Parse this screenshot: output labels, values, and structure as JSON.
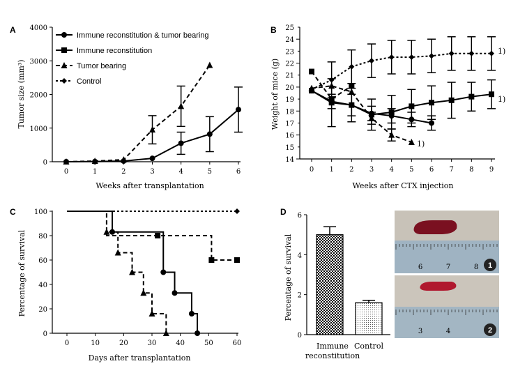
{
  "chart_data": [
    {
      "panel": "A",
      "type": "line",
      "xlabel": "Weeks after transplantation",
      "ylabel": "Tumor size (mm³)",
      "xlim": [
        0,
        6
      ],
      "ylim": [
        0,
        4000
      ],
      "x_ticks": [
        "0",
        "1",
        "2",
        "3",
        "4",
        "5",
        "6"
      ],
      "y_ticks": [
        "0",
        "1000",
        "2000",
        "3000",
        "4000"
      ],
      "legend": [
        {
          "name": "Immune reconstitution & tumor bearing",
          "marker": "circle",
          "dash": "solid"
        },
        {
          "name": "Immune reconstitution",
          "marker": "square",
          "dash": "solid"
        },
        {
          "name": "Tumor bearing",
          "marker": "triangle",
          "dash": "dashed"
        },
        {
          "name": "Control",
          "marker": "diamond",
          "dash": "dotted"
        }
      ],
      "series": [
        {
          "key": "s1",
          "marker": "circle",
          "dash": "solid",
          "x": [
            0,
            1,
            2,
            3,
            4,
            5,
            6
          ],
          "y": [
            0,
            5,
            20,
            100,
            550,
            820,
            1550
          ],
          "err": [
            0,
            0,
            0,
            0,
            330,
            520,
            670
          ]
        },
        {
          "key": "s3",
          "marker": "triangle",
          "dash": "dashed",
          "x": [
            0,
            1,
            2,
            3,
            4,
            5
          ],
          "y": [
            0,
            20,
            60,
            950,
            1650,
            2870
          ],
          "err": [
            0,
            0,
            0,
            420,
            600,
            0
          ]
        }
      ]
    },
    {
      "panel": "B",
      "type": "line",
      "xlabel": "Weeks after CTX injection",
      "ylabel": "Weight of mice (g)",
      "xlim": [
        0,
        9
      ],
      "ylim": [
        14,
        25
      ],
      "x_ticks": [
        "0",
        "1",
        "2",
        "3",
        "4",
        "5",
        "6",
        "7",
        "8",
        "9"
      ],
      "y_ticks": [
        "14",
        "16",
        "18",
        "20",
        "22",
        "24"
      ],
      "y_minor_ticks": [
        15,
        17,
        19,
        21,
        23,
        25
      ],
      "annotations": [
        "1)",
        "1)",
        "1)"
      ],
      "series": [
        {
          "marker": "diamond",
          "dash": "dotted",
          "x": [
            0,
            1,
            2,
            3,
            4,
            5,
            6,
            7,
            8,
            9
          ],
          "y": [
            19.8,
            20.6,
            21.7,
            22.2,
            22.5,
            22.5,
            22.6,
            22.8,
            22.8,
            22.8
          ],
          "err": [
            0,
            1.5,
            1.4,
            1.4,
            1.4,
            1.4,
            1.4,
            1.4,
            1.4,
            1.4
          ]
        },
        {
          "marker": "square",
          "dash": "solid",
          "x": [
            0,
            1,
            2,
            3,
            4,
            5,
            6,
            7,
            8,
            9
          ],
          "y": [
            19.7,
            18.7,
            18.5,
            17.7,
            17.9,
            18.4,
            18.7,
            18.9,
            19.2,
            19.4
          ],
          "err": [
            0,
            2.0,
            1.4,
            1.3,
            1.4,
            1.4,
            1.4,
            1.5,
            1.2,
            1.2
          ]
        },
        {
          "marker": "circle",
          "dash": "solid",
          "x": [
            0,
            1,
            2,
            3,
            4,
            5,
            6
          ],
          "y": [
            19.7,
            18.8,
            18.5,
            17.8,
            17.6,
            17.3,
            17.0
          ],
          "err": [
            0,
            0.6,
            0.9,
            0.6,
            0.6,
            0.6,
            0.6
          ]
        },
        {
          "marker": "triangle",
          "dash": "dashed",
          "x": [
            0,
            1,
            2,
            3,
            4,
            5
          ],
          "y": [
            19.9,
            20.1,
            19.6,
            17.4,
            16.0,
            15.4
          ],
          "err": [
            0,
            0,
            0,
            0.5,
            0.5,
            0
          ]
        },
        {
          "marker": "square",
          "dash": "dashed",
          "x": [
            0,
            1,
            2
          ],
          "y": [
            21.3,
            19.0,
            20.1
          ],
          "err": [
            0,
            0,
            0
          ]
        }
      ]
    },
    {
      "panel": "C",
      "type": "line",
      "xlabel": "Days after transplantation",
      "ylabel": "Percentage of survival",
      "xlim": [
        0,
        60
      ],
      "ylim": [
        0,
        100
      ],
      "x_ticks": [
        "0",
        "10",
        "20",
        "30",
        "40",
        "50",
        "60"
      ],
      "y_ticks": [
        "0",
        "20",
        "40",
        "60",
        "80",
        "100"
      ],
      "series": [
        {
          "marker": "diamond",
          "dash": "dotted",
          "x": [
            0,
            60
          ],
          "y": [
            100,
            100
          ],
          "markers_at": [
            60
          ]
        },
        {
          "marker": "square",
          "dash": "dashed",
          "x": [
            0,
            14,
            14,
            32,
            32,
            51,
            51,
            60
          ],
          "y": [
            100,
            100,
            80,
            80,
            80,
            80,
            60,
            60
          ],
          "markers_at_x": [
            32,
            51,
            60
          ],
          "markers_at_y": [
            80,
            60,
            60
          ]
        },
        {
          "marker": "circle",
          "dash": "solid",
          "x": [
            0,
            16,
            16,
            34,
            34,
            38,
            38,
            44,
            44,
            46,
            46
          ],
          "y": [
            100,
            100,
            83,
            83,
            50,
            50,
            33,
            33,
            16,
            16,
            0
          ],
          "markers_at_x": [
            16,
            34,
            38,
            44,
            46
          ],
          "markers_at_y": [
            83,
            50,
            33,
            16,
            0
          ]
        },
        {
          "marker": "triangle",
          "dash": "dashed",
          "x": [
            0,
            14,
            14,
            18,
            18,
            23,
            23,
            27,
            27,
            30,
            30,
            35,
            35
          ],
          "y": [
            100,
            100,
            83,
            83,
            66,
            66,
            50,
            50,
            33,
            33,
            16,
            16,
            0
          ],
          "markers_at_x": [
            14,
            18,
            23,
            27,
            30,
            35
          ],
          "markers_at_y": [
            83,
            66,
            50,
            33,
            16,
            0
          ]
        }
      ]
    },
    {
      "panel": "D",
      "type": "bar",
      "ylabel": "Percentage of survival",
      "ylim": [
        0,
        6
      ],
      "y_ticks": [
        "0",
        "2",
        "4",
        "6"
      ],
      "categories": [
        "Immune reconstitution",
        "Control"
      ],
      "values": [
        5.0,
        1.6
      ],
      "errors": [
        0.4,
        0.12
      ],
      "photo_labels": [
        "1",
        "2"
      ],
      "ruler_numbers_top": [
        "6",
        "7",
        "8"
      ],
      "ruler_numbers_bottom": [
        "3",
        "4"
      ]
    }
  ],
  "panel_labels": [
    "A",
    "B",
    "C",
    "D"
  ]
}
